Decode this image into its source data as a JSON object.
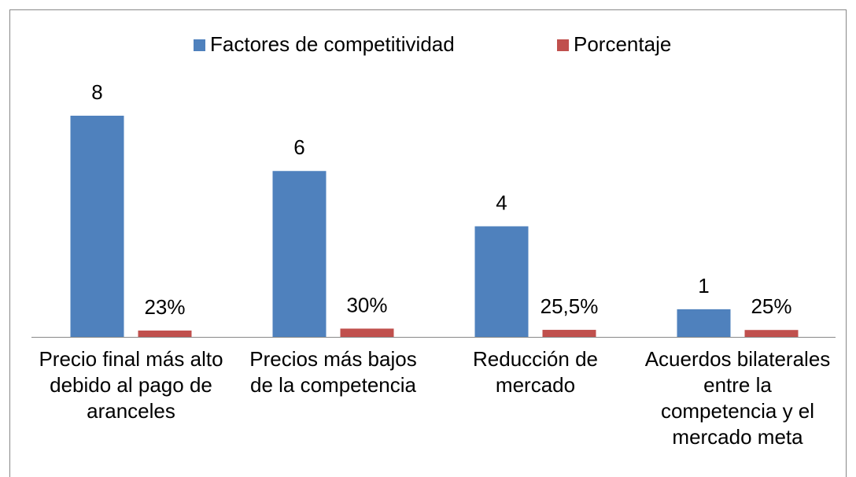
{
  "chart_data": {
    "type": "bar",
    "categories": [
      "Precio final más alto debido al pago de aranceles",
      "Precios más bajos de la competencia",
      "Reducción de mercado",
      "Acuerdos bilaterales entre la competencia y el mercado meta"
    ],
    "series": [
      {
        "name": "Factores de competitividad",
        "color": "#4f81bd",
        "values": [
          8,
          6,
          4,
          1
        ]
      },
      {
        "name": "Porcentaje",
        "color": "#c0504d",
        "values": [
          0.23,
          0.3,
          0.255,
          0.25
        ],
        "value_labels": [
          "23%",
          "30%",
          "25,5%",
          "25%"
        ]
      }
    ],
    "legend": "top"
  }
}
